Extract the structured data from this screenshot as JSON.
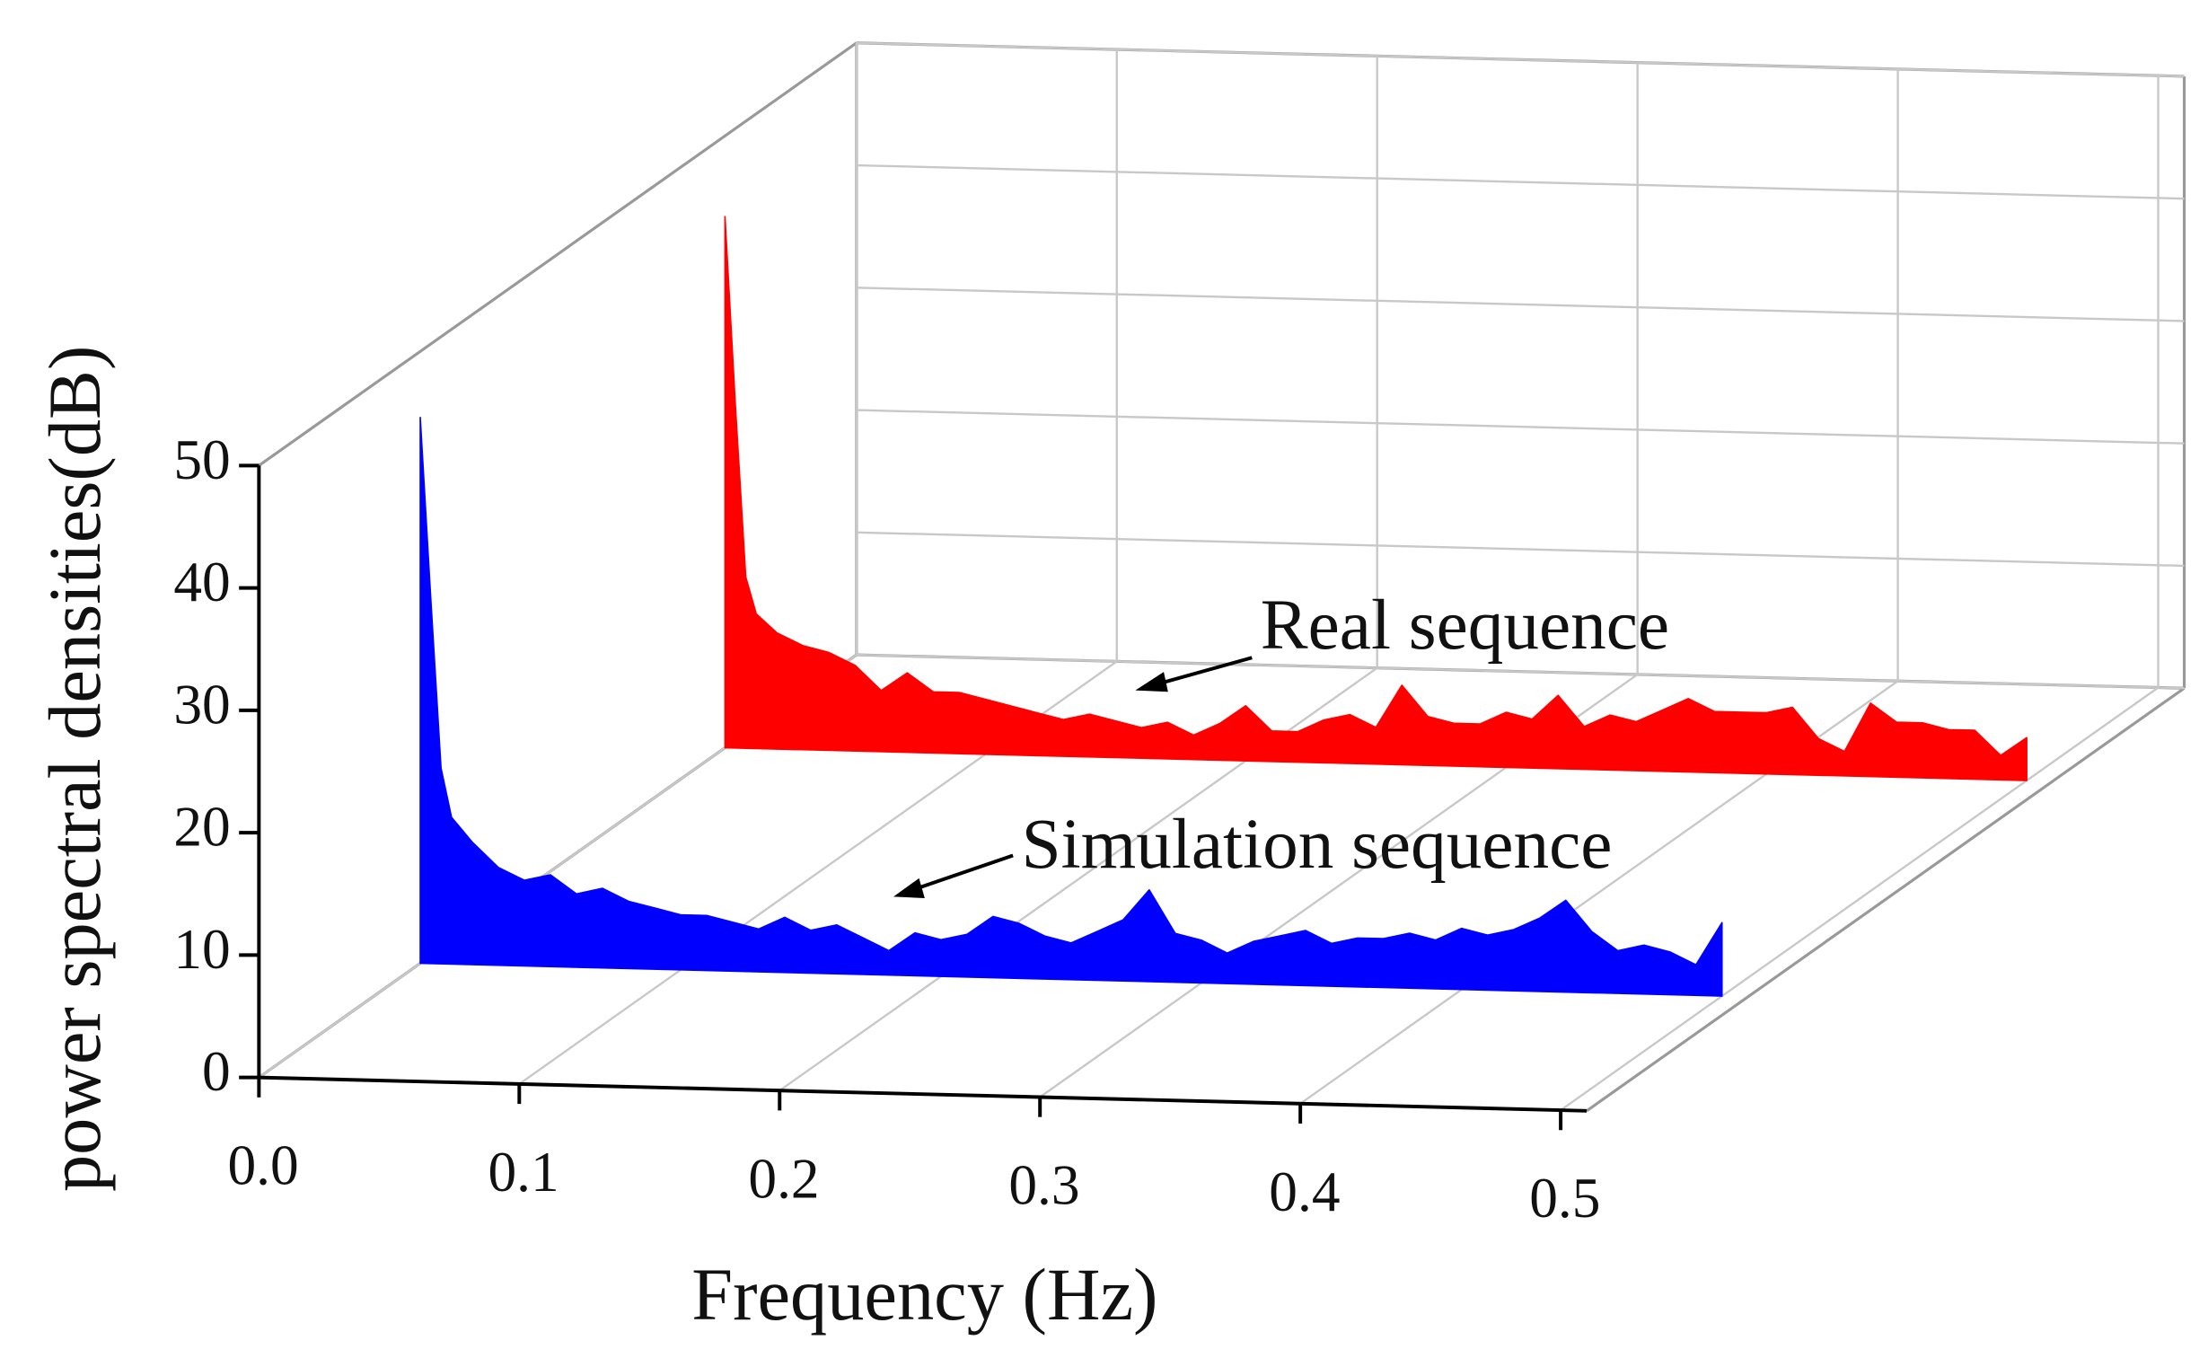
{
  "chart_data": {
    "type": "waterfall3d",
    "x_label": "Frequency (Hz)",
    "y_label": "power spectral densities(dB)",
    "x": [
      0,
      0.004,
      0.008,
      0.012,
      0.02,
      0.03,
      0.04,
      0.05,
      0.06,
      0.07,
      0.08,
      0.09,
      0.1,
      0.11,
      0.12,
      0.13,
      0.14,
      0.15,
      0.16,
      0.17,
      0.18,
      0.19,
      0.2,
      0.21,
      0.22,
      0.23,
      0.24,
      0.25,
      0.26,
      0.27,
      0.28,
      0.29,
      0.3,
      0.31,
      0.32,
      0.33,
      0.34,
      0.35,
      0.36,
      0.37,
      0.38,
      0.39,
      0.4,
      0.41,
      0.42,
      0.43,
      0.44,
      0.45,
      0.46,
      0.47,
      0.48,
      0.49,
      0.5
    ],
    "series": [
      {
        "name": "Real sequence",
        "color": "#ff0000",
        "values": [
          43.4,
          28,
          14,
          11,
          9.5,
          8.5,
          8,
          7,
          5,
          6.5,
          5,
          5,
          4.5,
          4,
          3.5,
          3,
          3.5,
          3,
          2.5,
          3,
          2,
          3,
          4.5,
          2.5,
          2.5,
          3.5,
          4,
          3,
          6.5,
          4,
          3.5,
          3.5,
          4.5,
          4,
          6,
          3.5,
          4.5,
          4,
          5,
          6,
          5,
          5,
          5,
          5.5,
          3,
          2,
          6,
          4.5,
          4.5,
          4,
          4,
          2,
          3.5
        ]
      },
      {
        "name": "Simulation sequence",
        "color": "#0000ff",
        "values": [
          44.6,
          30,
          16,
          12,
          10,
          8,
          7,
          7.5,
          6,
          6.5,
          5.5,
          5,
          4.5,
          4.5,
          4,
          3.5,
          4.5,
          3.5,
          4,
          3,
          2,
          3.5,
          3,
          3.5,
          5,
          4.5,
          3.5,
          3,
          4,
          5,
          7.5,
          4,
          3.5,
          2.5,
          3.5,
          4,
          4.5,
          3.5,
          4,
          4,
          4.5,
          4,
          5,
          4.5,
          5,
          6,
          7.5,
          5,
          3.5,
          4,
          3.5,
          2.5,
          6
        ]
      }
    ],
    "xlim": [
      0,
      0.5
    ],
    "ylim": [
      0,
      50
    ],
    "xticks": [
      {
        "value": 0,
        "label": "0.0"
      },
      {
        "value": 0.1,
        "label": "0.1"
      },
      {
        "value": 0.2,
        "label": "0.2"
      },
      {
        "value": 0.3,
        "label": "0.3"
      },
      {
        "value": 0.4,
        "label": "0.4"
      },
      {
        "value": 0.5,
        "label": "0.5"
      }
    ],
    "yticks": [
      0,
      10,
      20,
      30,
      40,
      50
    ],
    "grid": true
  }
}
